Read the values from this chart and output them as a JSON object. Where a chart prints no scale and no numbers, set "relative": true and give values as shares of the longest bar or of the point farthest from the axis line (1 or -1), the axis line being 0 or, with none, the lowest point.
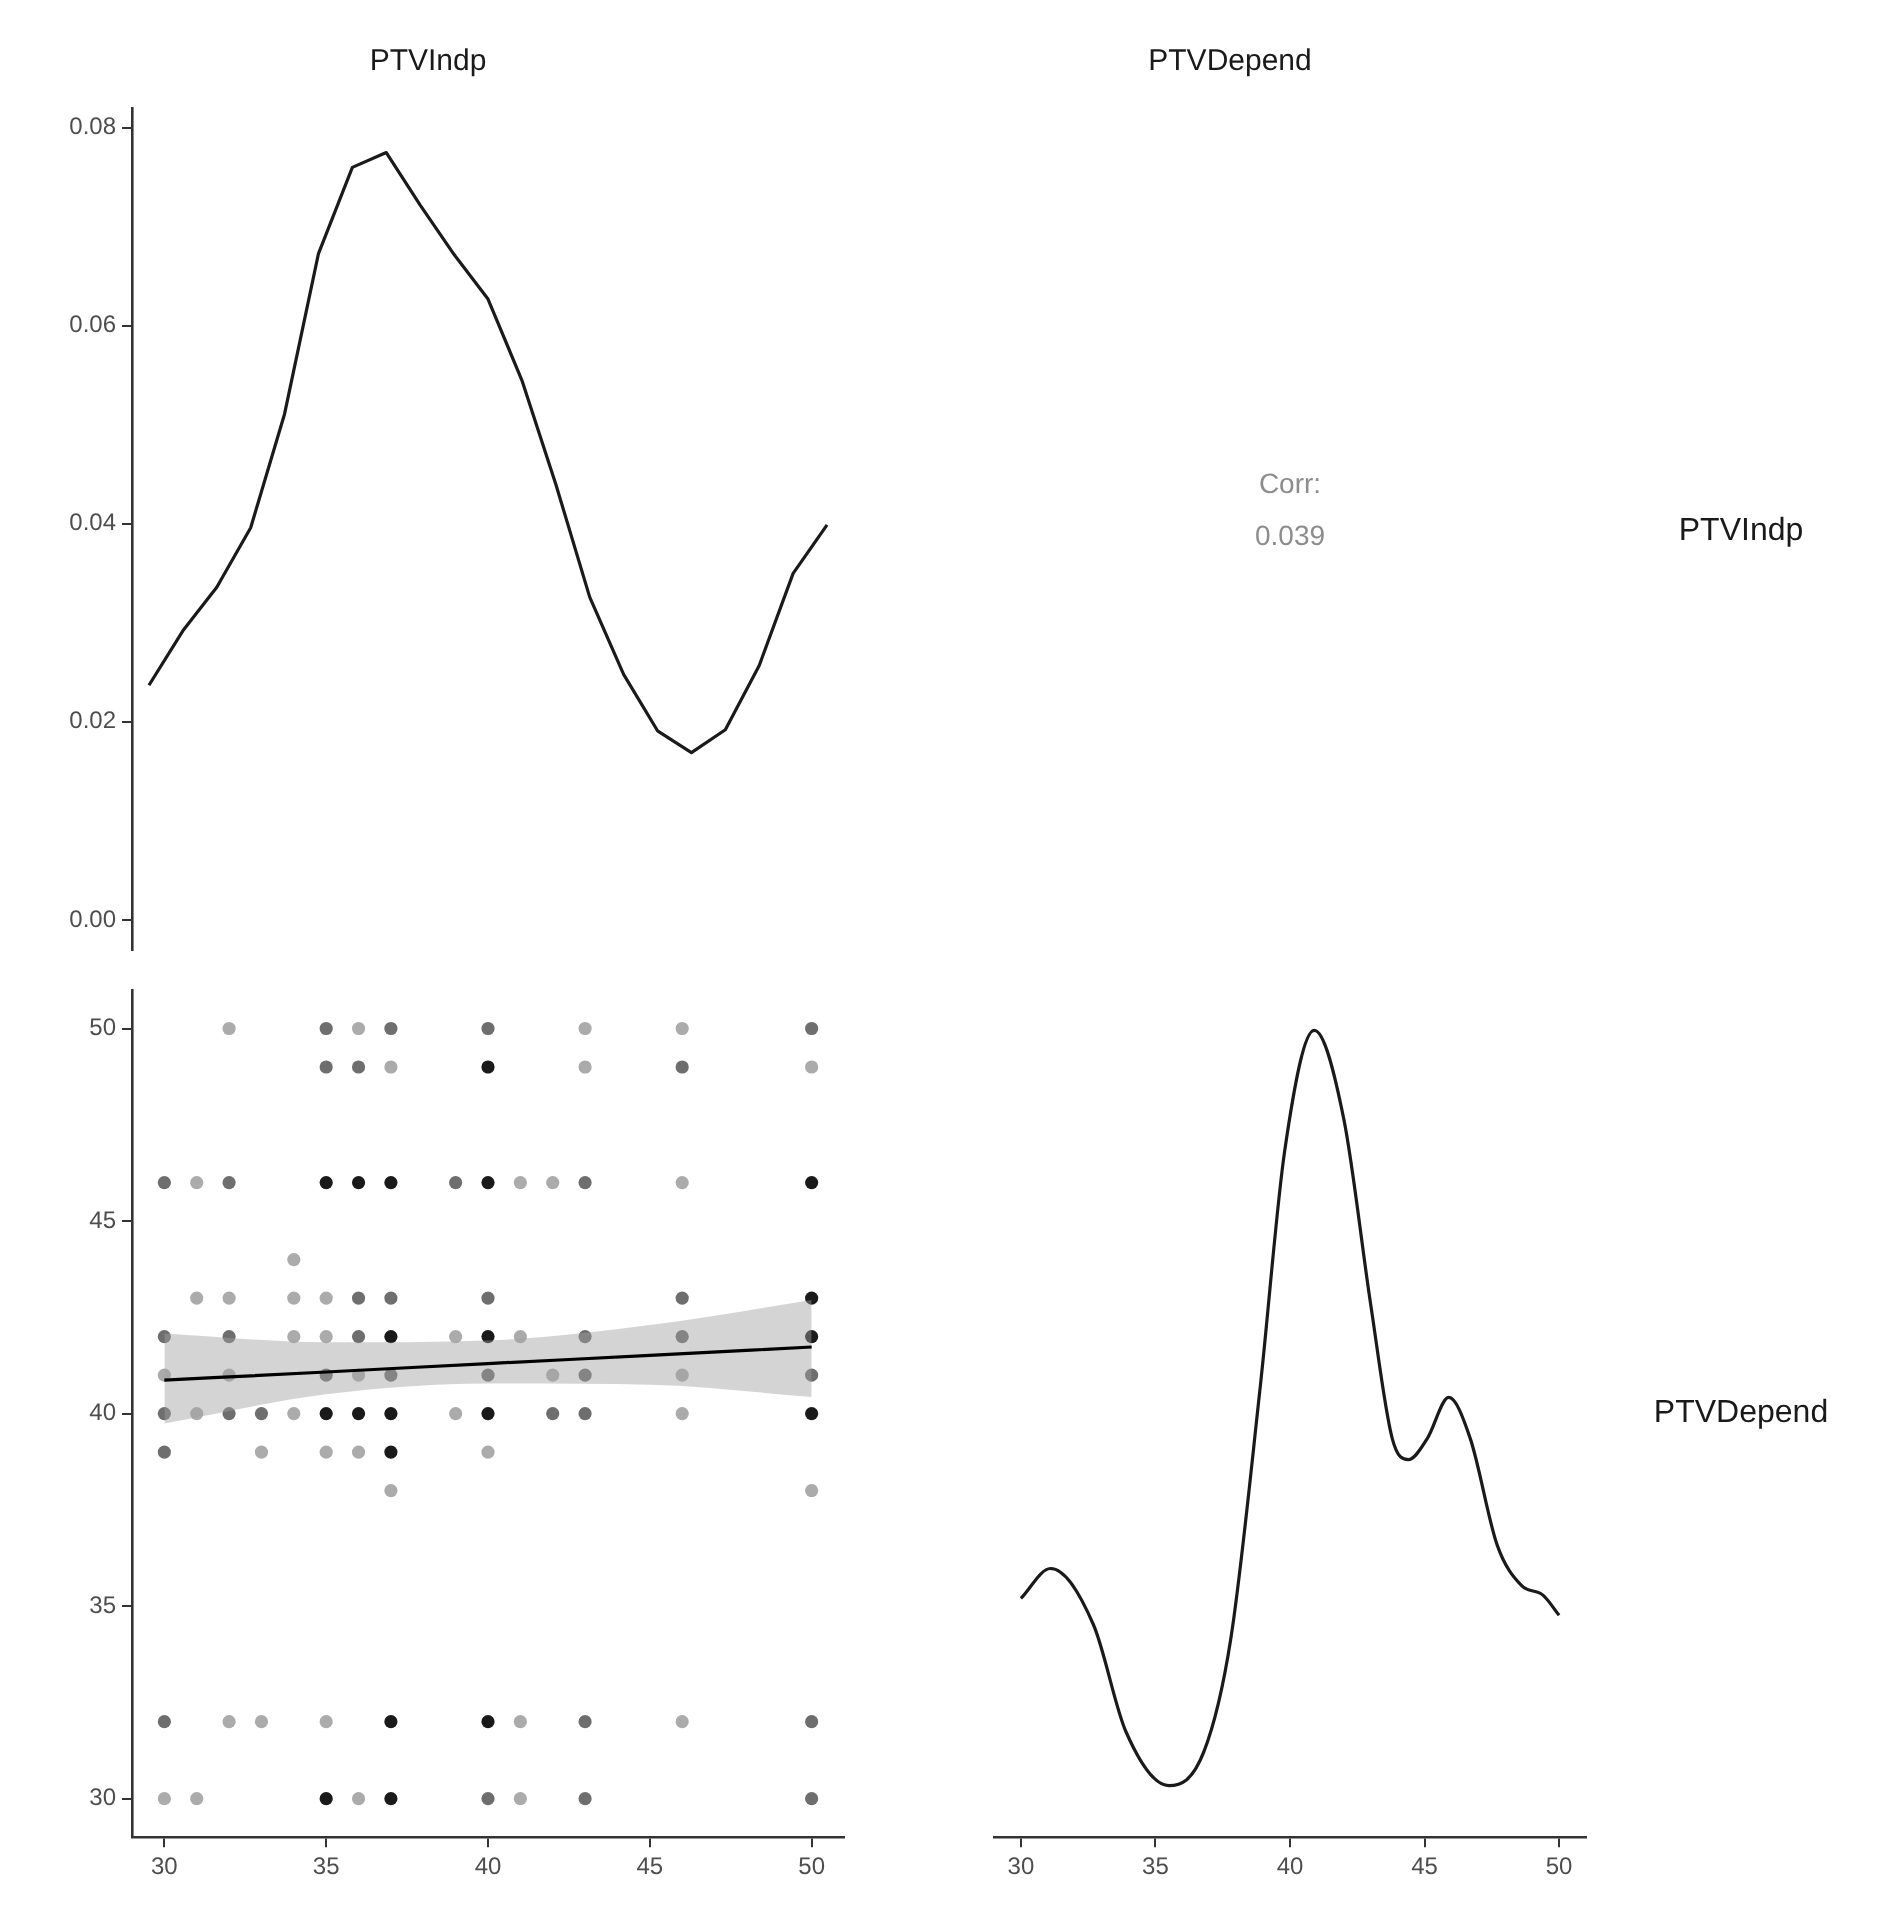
{
  "chart_data": [
    {
      "type": "line",
      "title": "PTVIndp",
      "ylim": [
        -0.003,
        0.082
      ],
      "yticks": [
        {
          "value": 0,
          "label": "0.00"
        },
        0.02,
        0.04,
        0.06,
        0.08
      ],
      "tick_labels": "y",
      "categories": [
        null,
        null,
        null,
        null,
        null,
        null,
        null,
        null,
        null,
        null,
        null,
        null,
        null,
        null,
        null,
        null,
        null,
        null,
        null,
        null,
        null
      ],
      "series": [
        {
          "color": "#1a1a1a",
          "values": [
            0.0237,
            0.0292,
            0.0336,
            0.0396,
            0.0511,
            0.0673,
            0.076,
            0.0775,
            0.0722,
            0.0672,
            0.0627,
            0.0545,
            0.044,
            0.0326,
            0.0248,
            0.0191,
            0.0169,
            0.0192,
            0.0257,
            0.035,
            0.0399
          ]
        }
      ]
    },
    {
      "type": "other",
      "title": "PTVDepend",
      "y2label": "PTVIndp",
      "annotations": [
        "Corr:",
        "0.039"
      ]
    },
    {
      "type": "scatter",
      "xlim": [
        29,
        51
      ],
      "xticks": [
        30,
        35,
        40,
        45,
        50
      ],
      "ylim": [
        29,
        51
      ],
      "yticks": [
        30,
        35,
        40,
        45,
        50
      ],
      "series": [
        {
          "marker": "circle",
          "x": [
            30,
            30,
            30,
            30,
            30,
            30,
            30,
            31,
            31,
            31,
            31,
            32,
            32,
            32,
            32,
            32,
            32,
            32,
            33,
            33,
            33,
            34,
            34,
            34,
            34,
            35,
            35,
            35,
            35,
            35,
            35,
            35,
            35,
            35,
            35,
            36,
            36,
            36,
            36,
            36,
            36,
            36,
            36,
            36,
            37,
            37,
            37,
            37,
            37,
            37,
            37,
            37,
            37,
            37,
            37,
            39,
            39,
            39,
            40,
            40,
            40,
            40,
            40,
            40,
            40,
            40,
            40,
            40,
            41,
            41,
            41,
            41,
            42,
            42,
            42,
            43,
            43,
            43,
            43,
            43,
            43,
            43,
            43,
            46,
            46,
            46,
            46,
            46,
            46,
            46,
            46,
            50,
            50,
            50,
            50,
            50,
            50,
            50,
            50,
            50,
            50
          ],
          "values": [
            46,
            42,
            41,
            40,
            39,
            32,
            30,
            46,
            43,
            40,
            30,
            50,
            46,
            43,
            42,
            41,
            40,
            32,
            40,
            39,
            32,
            44,
            43,
            42,
            40,
            50,
            49,
            46,
            43,
            42,
            41,
            40,
            39,
            32,
            30,
            50,
            49,
            46,
            43,
            42,
            41,
            40,
            39,
            30,
            50,
            49,
            46,
            43,
            42,
            41,
            40,
            39,
            38,
            32,
            30,
            46,
            42,
            40,
            50,
            49,
            46,
            43,
            42,
            41,
            40,
            39,
            32,
            30,
            46,
            42,
            32,
            30,
            46,
            41,
            40,
            50,
            49,
            46,
            42,
            41,
            40,
            32,
            30,
            50,
            49,
            46,
            43,
            42,
            41,
            40,
            32,
            50,
            49,
            46,
            43,
            42,
            41,
            40,
            38,
            32,
            30
          ],
          "colors": [
            "#6e6e6e",
            "#6e6e6e",
            "#ababab",
            "#6e6e6e",
            "#6e6e6e",
            "#6e6e6e",
            "#ababab",
            "#ababab",
            "#ababab",
            "#ababab",
            "#ababab",
            "#ababab",
            "#6e6e6e",
            "#ababab",
            "#6e6e6e",
            "#ababab",
            "#6e6e6e",
            "#ababab",
            "#6e6e6e",
            "#ababab",
            "#ababab",
            "#ababab",
            "#ababab",
            "#ababab",
            "#ababab",
            "#6e6e6e",
            "#6e6e6e",
            "#1a1a1a",
            "#ababab",
            "#ababab",
            "#6e6e6e",
            "#1a1a1a",
            "#ababab",
            "#ababab",
            "#1a1a1a",
            "#ababab",
            "#6e6e6e",
            "#1a1a1a",
            "#6e6e6e",
            "#6e6e6e",
            "#ababab",
            "#1a1a1a",
            "#ababab",
            "#ababab",
            "#6e6e6e",
            "#ababab",
            "#1a1a1a",
            "#6e6e6e",
            "#1a1a1a",
            "#6e6e6e",
            "#1a1a1a",
            "#1a1a1a",
            "#ababab",
            "#1a1a1a",
            "#1a1a1a",
            "#6e6e6e",
            "#ababab",
            "#ababab",
            "#6e6e6e",
            "#1a1a1a",
            "#1a1a1a",
            "#6e6e6e",
            "#1a1a1a",
            "#6e6e6e",
            "#1a1a1a",
            "#ababab",
            "#1a1a1a",
            "#6e6e6e",
            "#ababab",
            "#ababab",
            "#ababab",
            "#ababab",
            "#ababab",
            "#ababab",
            "#6e6e6e",
            "#ababab",
            "#ababab",
            "#6e6e6e",
            "#6e6e6e",
            "#6e6e6e",
            "#6e6e6e",
            "#6e6e6e",
            "#6e6e6e",
            "#ababab",
            "#6e6e6e",
            "#ababab",
            "#6e6e6e",
            "#6e6e6e",
            "#ababab",
            "#ababab",
            "#ababab",
            "#6e6e6e",
            "#ababab",
            "#1a1a1a",
            "#1a1a1a",
            "#1a1a1a",
            "#6e6e6e",
            "#1a1a1a",
            "#ababab",
            "#6e6e6e",
            "#6e6e6e"
          ]
        },
        {
          "type": "line",
          "color": "#000000",
          "x": [
            30,
            35,
            40,
            45,
            50
          ],
          "values": [
            40.87,
            41.08,
            41.3,
            41.51,
            41.73
          ],
          "lower": [
            39.74,
            40.5,
            40.78,
            40.75,
            40.43
          ],
          "upper": [
            42.08,
            41.85,
            41.9,
            42.3,
            42.95
          ]
        }
      ]
    },
    {
      "type": "line",
      "relative": true,
      "y2label": "PTVDepend",
      "xlim": [
        29,
        51
      ],
      "xticks": [
        30,
        35,
        40,
        45,
        50
      ],
      "tick_labels": "x",
      "series": [
        {
          "color": "#1a1a1a",
          "x": [
            30,
            31.1,
            32.7,
            33.9,
            35.5,
            36.8,
            37.8,
            38.9,
            39.8,
            40.9,
            42.0,
            43.0,
            43.8,
            44.4,
            45.1,
            45.9,
            46.7,
            47.7,
            48.6,
            49.4,
            50
          ],
          "values": [
            0.296,
            0.333,
            0.263,
            0.131,
            0.064,
            0.106,
            0.246,
            0.56,
            0.85,
            1.0,
            0.89,
            0.66,
            0.494,
            0.468,
            0.494,
            0.545,
            0.494,
            0.362,
            0.312,
            0.3,
            0.275
          ]
        }
      ]
    }
  ]
}
